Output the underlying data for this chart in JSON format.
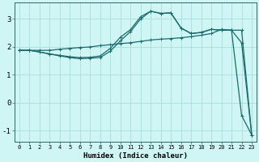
{
  "xlabel": "Humidex (Indice chaleur)",
  "bg_color": "#cff5f5",
  "grid_color": "#aadddd",
  "line_color": "#1a6b6b",
  "xlim": [
    -0.5,
    23.5
  ],
  "ylim": [
    -1.4,
    3.6
  ],
  "x_ticks": [
    0,
    1,
    2,
    3,
    4,
    5,
    6,
    7,
    8,
    9,
    10,
    11,
    12,
    13,
    14,
    15,
    16,
    17,
    18,
    19,
    20,
    21,
    22,
    23
  ],
  "y_ticks": [
    -1,
    0,
    1,
    2,
    3
  ],
  "line1_x": [
    0,
    1,
    2,
    3,
    4,
    5,
    6,
    7,
    8,
    9,
    10,
    11,
    12,
    13,
    14,
    15,
    16,
    17,
    18,
    19,
    20,
    21,
    22,
    23
  ],
  "line1_y": [
    1.88,
    1.88,
    1.88,
    1.88,
    1.92,
    1.95,
    1.98,
    2.0,
    2.05,
    2.08,
    2.12,
    2.15,
    2.2,
    2.25,
    2.28,
    2.3,
    2.33,
    2.37,
    2.42,
    2.48,
    2.63,
    2.6,
    2.6,
    -1.15
  ],
  "line2_x": [
    0,
    1,
    2,
    3,
    4,
    5,
    6,
    7,
    8,
    9,
    10,
    11,
    12,
    13,
    14,
    15,
    16,
    17,
    18,
    19,
    20,
    21,
    22,
    23
  ],
  "line2_y": [
    1.88,
    1.88,
    1.82,
    1.75,
    1.7,
    1.65,
    1.62,
    1.63,
    1.68,
    1.95,
    2.35,
    2.62,
    3.08,
    3.28,
    3.2,
    3.22,
    2.68,
    2.48,
    2.52,
    2.63,
    2.6,
    2.6,
    -0.45,
    -1.15
  ],
  "line3_x": [
    0,
    1,
    2,
    3,
    4,
    5,
    6,
    7,
    8,
    9,
    10,
    11,
    12,
    13,
    14,
    15,
    16,
    17,
    18,
    19,
    20,
    21,
    22,
    23
  ],
  "line3_y": [
    1.88,
    1.88,
    1.82,
    1.75,
    1.68,
    1.62,
    1.58,
    1.6,
    1.62,
    1.85,
    2.22,
    2.55,
    3.0,
    3.28,
    3.2,
    3.22,
    2.68,
    2.48,
    2.52,
    2.63,
    2.6,
    2.6,
    2.15,
    -1.15
  ]
}
